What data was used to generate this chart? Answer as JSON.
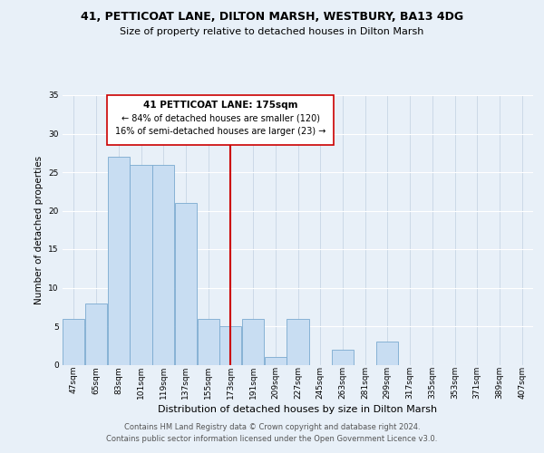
{
  "title_line1": "41, PETTICOAT LANE, DILTON MARSH, WESTBURY, BA13 4DG",
  "title_line2": "Size of property relative to detached houses in Dilton Marsh",
  "xlabel": "Distribution of detached houses by size in Dilton Marsh",
  "ylabel": "Number of detached properties",
  "bar_color": "#c8ddf2",
  "bar_edge_color": "#7aaad0",
  "background_color": "#e8f0f8",
  "plot_bg_color": "#e8f0f8",
  "bin_labels": [
    "47sqm",
    "65sqm",
    "83sqm",
    "101sqm",
    "119sqm",
    "137sqm",
    "155sqm",
    "173sqm",
    "191sqm",
    "209sqm",
    "227sqm",
    "245sqm",
    "263sqm",
    "281sqm",
    "299sqm",
    "317sqm",
    "335sqm",
    "353sqm",
    "371sqm",
    "389sqm",
    "407sqm"
  ],
  "bar_values": [
    6,
    8,
    27,
    26,
    26,
    21,
    6,
    5,
    6,
    1,
    6,
    0,
    2,
    0,
    3,
    0,
    0,
    0,
    0,
    0,
    0
  ],
  "ylim": [
    0,
    35
  ],
  "yticks": [
    0,
    5,
    10,
    15,
    20,
    25,
    30,
    35
  ],
  "marker_idx": 7,
  "annotation_line1": "41 PETTICOAT LANE: 175sqm",
  "annotation_line2": "← 84% of detached houses are smaller (120)",
  "annotation_line3": "16% of semi-detached houses are larger (23) →",
  "marker_color": "#cc0000",
  "footer_line1": "Contains HM Land Registry data © Crown copyright and database right 2024.",
  "footer_line2": "Contains public sector information licensed under the Open Government Licence v3.0.",
  "grid_color": "#c0cfe0",
  "title1_fontsize": 9.0,
  "title2_fontsize": 8.0,
  "xlabel_fontsize": 8.0,
  "ylabel_fontsize": 7.5,
  "tick_fontsize": 6.5,
  "footer_fontsize": 6.0
}
